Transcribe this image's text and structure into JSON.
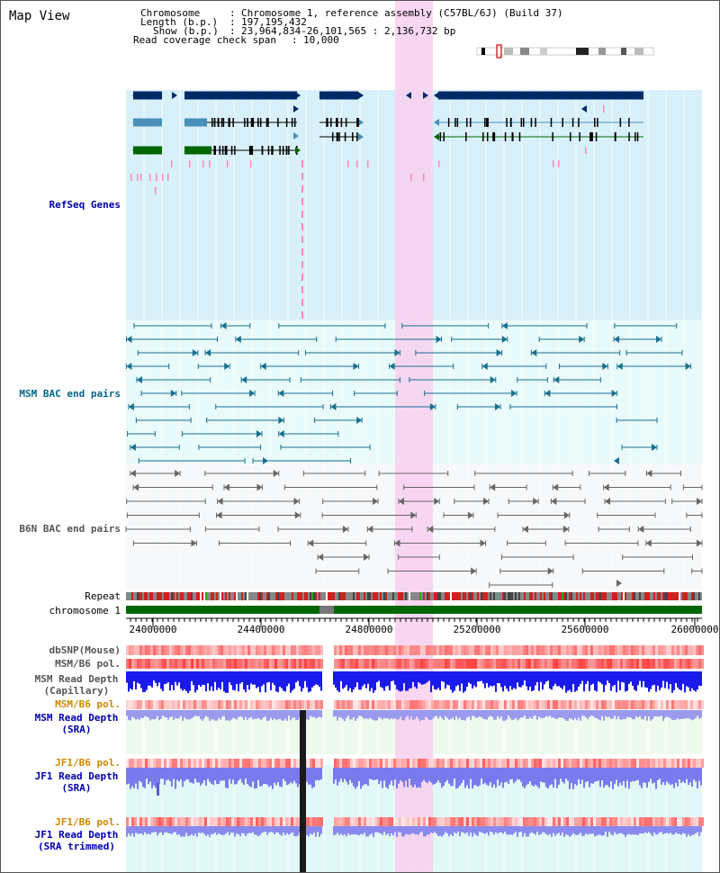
{
  "app": {
    "title": "Map View"
  },
  "info": {
    "chromosome_key": "Chromosome",
    "chromosome": "Chromosome 1, reference assembly (C57BL/6J) (Build 37)",
    "length_key": "Length (b.p.)",
    "length": "197,195,432",
    "show_key": "Show (b.p.)",
    "show": "23,964,834-26,101,565 : 2,136,732 bp",
    "coverage_key": "Read coverage check span",
    "coverage": "10,000"
  },
  "tracks": {
    "refseq": "RefSeq Genes",
    "msm_bac": "MSM BAC end pairs",
    "b6n_bac": "B6N BAC end pairs",
    "repeat": "Repeat",
    "chromosome": "chromosome 1",
    "dbsnp": "dbSNP(Mouse)",
    "msm_b6_pol_1": "MSM/B6 pol.",
    "msm_read_depth_cap_1": "MSM Read Depth",
    "msm_read_depth_cap_2": "(Capillary)",
    "msm_b6_pol_2": "MSM/B6 pol.",
    "msm_read_depth_sra_1": "MSM Read Depth",
    "msm_read_depth_sra_2": "(SRA)",
    "jf1_b6_pol_1": "JF1/B6 pol.",
    "jf1_read_depth_sra_1": "JF1 Read Depth",
    "jf1_read_depth_sra_2": "(SRA)",
    "jf1_b6_pol_2": "JF1/B6 pol.",
    "jf1_read_depth_trim_1": "JF1 Read Depth",
    "jf1_read_depth_trim_2": "(SRA trimmed)"
  },
  "axis": {
    "ticks": [
      "24000000",
      "24400000",
      "24800000",
      "25200000",
      "25600000",
      "26000000"
    ]
  },
  "colors": {
    "label_blue": "#0000aa",
    "label_teal": "#006688",
    "label_gray": "#555555",
    "label_orange": "#cc8800",
    "highlight": "#f8d0f0",
    "refseq_bg": "#d8f0fa",
    "bac_bg": "#e8fafa",
    "gene_dark": "#002a66",
    "gene_light": "#4a90b8",
    "gene_green": "#006600",
    "chrom_green": "#006600"
  }
}
